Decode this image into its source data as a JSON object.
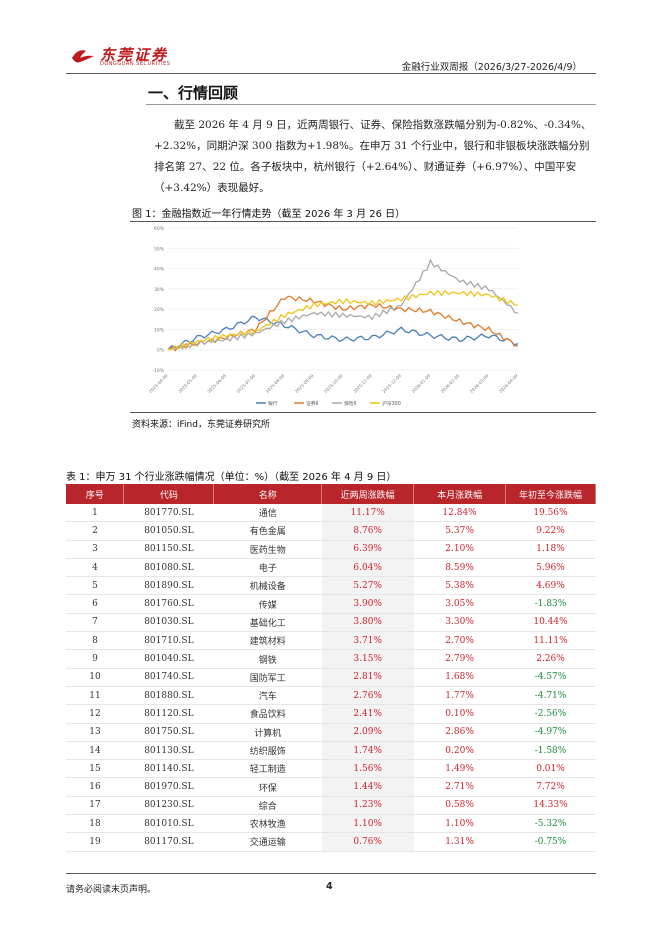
{
  "header": {
    "logo_text": "东莞证券",
    "logo_sub": "DONGGUAN SECURITIES",
    "report_title": "金融行业双周报（2026/3/27-2026/4/9）"
  },
  "section": {
    "title": "一、行情回顾",
    "paragraph": "截至 2026 年 4 月 9 日，近两周银行、证券、保险指数涨跌幅分别为-0.82%、-0.34%、+2.32%，同期沪深 300 指数为+1.98%。在申万 31 个行业中，银行和非银板块涨跌幅分别排名第 27、22 位。各子板块中，杭州银行（+2.64%）、财通证券（+6.97%）、中国平安（+3.42%）表现最好。"
  },
  "figure": {
    "caption": "图 1：金融指数近一年行情走势（截至 2026 年 3 月 26 日）",
    "source": "资料来源：iFind，东莞证券研究所"
  },
  "chart_data": {
    "type": "line",
    "y_ticks": [
      "60%",
      "50%",
      "40%",
      "30%",
      "20%",
      "10%",
      "0%",
      "-10%"
    ],
    "ylim": [
      -10,
      60
    ],
    "x_ticks": [
      "2025-04-09",
      "2025-05-09",
      "2025-06-09",
      "2025-07-09",
      "2025-08-09",
      "2025-09-09",
      "2025-10-09",
      "2025-11-09",
      "2025-12-09",
      "2026-01-09",
      "2026-02-09",
      "2026-03-09",
      "2026-04-09"
    ],
    "x": [
      0,
      1,
      2,
      3,
      4,
      5,
      6,
      7,
      8,
      9,
      10,
      11,
      12
    ],
    "series": [
      {
        "name": "银行",
        "color": "#4a7ebb",
        "values": [
          0,
          6,
          10,
          16,
          12,
          7,
          5,
          6,
          10,
          7,
          5,
          7,
          3
        ]
      },
      {
        "name": "证券Ⅱ",
        "color": "#e07b2a",
        "values": [
          0,
          3,
          6,
          10,
          26,
          24,
          20,
          22,
          20,
          19,
          14,
          10,
          2
        ]
      },
      {
        "name": "保险Ⅱ",
        "color": "#a9a9a9",
        "values": [
          0,
          3,
          5,
          8,
          14,
          18,
          17,
          16,
          22,
          43,
          34,
          30,
          18
        ]
      },
      {
        "name": "沪深300",
        "color": "#f0c419",
        "values": [
          0,
          4,
          7,
          9,
          17,
          22,
          24,
          23,
          25,
          28,
          28,
          27,
          22
        ]
      }
    ]
  },
  "table": {
    "caption": "表 1：申万 31 个行业涨跌幅情况（单位：%）（截至 2026 年 4 月 9 日）",
    "headers": [
      "序号",
      "代码",
      "名称",
      "近两周涨跌幅",
      "本月涨跌幅",
      "年初至今涨跌幅"
    ],
    "rows": [
      [
        "1",
        "801770.SL",
        "通信",
        "11.17%",
        "12.84%",
        "19.56%"
      ],
      [
        "2",
        "801050.SL",
        "有色金属",
        "8.76%",
        "5.37%",
        "9.22%"
      ],
      [
        "3",
        "801150.SL",
        "医药生物",
        "6.39%",
        "2.10%",
        "1.18%"
      ],
      [
        "4",
        "801080.SL",
        "电子",
        "6.04%",
        "8.59%",
        "5.96%"
      ],
      [
        "5",
        "801890.SL",
        "机械设备",
        "5.27%",
        "5.38%",
        "4.69%"
      ],
      [
        "6",
        "801760.SL",
        "传媒",
        "3.90%",
        "3.05%",
        "-1.83%"
      ],
      [
        "7",
        "801030.SL",
        "基础化工",
        "3.80%",
        "3.30%",
        "10.44%"
      ],
      [
        "8",
        "801710.SL",
        "建筑材料",
        "3.71%",
        "2.70%",
        "11.11%"
      ],
      [
        "9",
        "801040.SL",
        "钢铁",
        "3.15%",
        "2.79%",
        "2.26%"
      ],
      [
        "10",
        "801740.SL",
        "国防军工",
        "2.81%",
        "1.68%",
        "-4.57%"
      ],
      [
        "11",
        "801880.SL",
        "汽车",
        "2.76%",
        "1.77%",
        "-4.71%"
      ],
      [
        "12",
        "801120.SL",
        "食品饮料",
        "2.41%",
        "0.10%",
        "-2.56%"
      ],
      [
        "13",
        "801750.SL",
        "计算机",
        "2.09%",
        "2.86%",
        "-4.97%"
      ],
      [
        "14",
        "801130.SL",
        "纺织服饰",
        "1.74%",
        "0.20%",
        "-1.58%"
      ],
      [
        "15",
        "801140.SL",
        "轻工制造",
        "1.56%",
        "1.49%",
        "0.01%"
      ],
      [
        "16",
        "801970.SL",
        "环保",
        "1.44%",
        "2.71%",
        "7.72%"
      ],
      [
        "17",
        "801230.SL",
        "综合",
        "1.23%",
        "0.58%",
        "14.33%"
      ],
      [
        "18",
        "801010.SL",
        "农林牧渔",
        "1.10%",
        "1.10%",
        "-5.32%"
      ],
      [
        "19",
        "801170.SL",
        "交通运输",
        "0.76%",
        "1.31%",
        "-0.75%"
      ]
    ]
  },
  "footer": {
    "disclaimer": "请务必阅读末页声明。",
    "page": "4"
  },
  "colors": {
    "brand_red": "#c0191d",
    "header_red": "#b8252b",
    "positive": "#d0212b",
    "negative": "#1a8a3a"
  }
}
